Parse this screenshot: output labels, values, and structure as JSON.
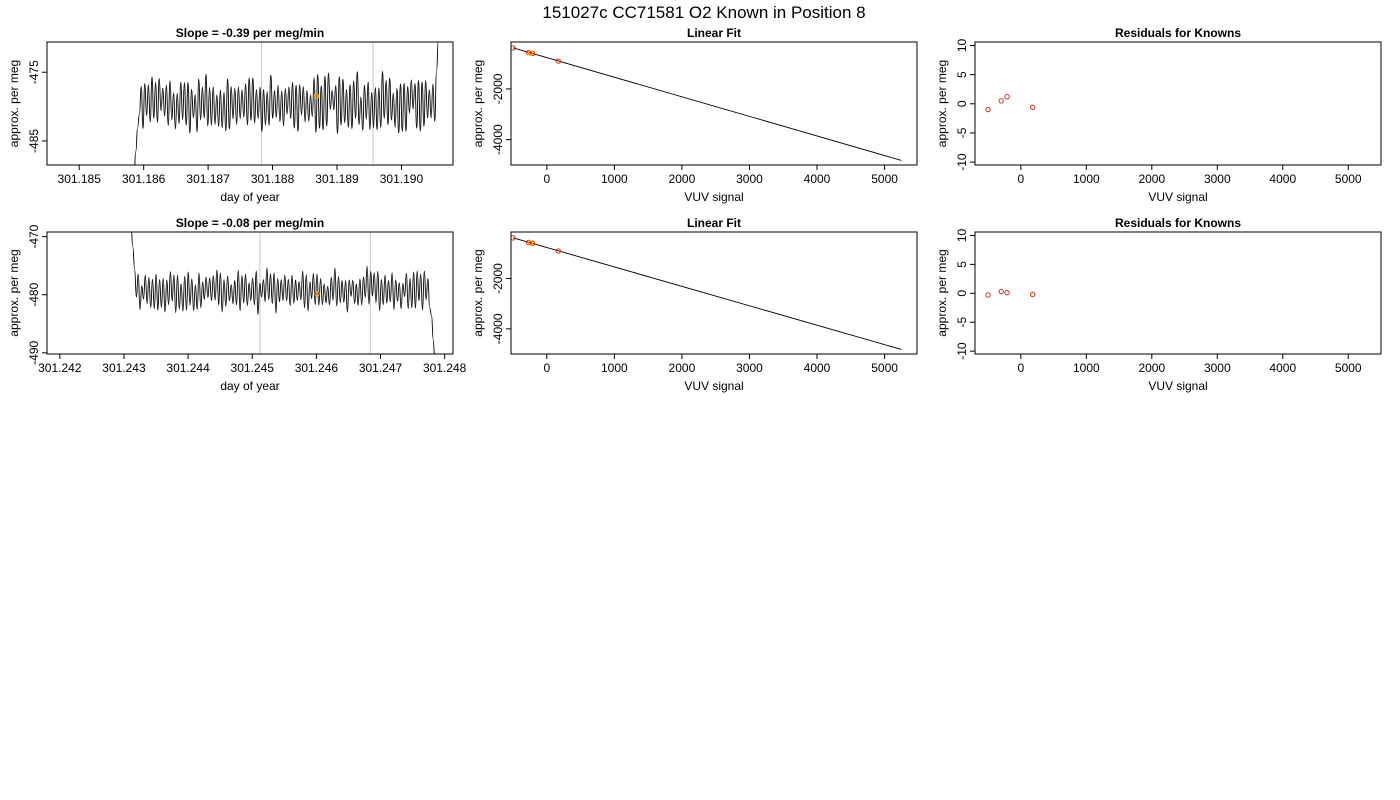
{
  "figure": {
    "title": "151027c     CC71581   O2 Known in Position  8"
  },
  "chart_data": [
    {
      "type": "line",
      "title": "Slope =  -0.39  per meg/min",
      "xlabel": "day of year",
      "ylabel": "approx. per meg",
      "xlim": [
        301.1845,
        301.1908
      ],
      "ylim": [
        -488.5,
        -470.6
      ],
      "xticks": [
        301.185,
        301.186,
        301.187,
        301.188,
        301.189,
        301.19
      ],
      "xtick_labels": [
        "301.185",
        "301.186",
        "301.187",
        "301.188",
        "301.189",
        "301.190"
      ],
      "yticks": [
        -485,
        -475
      ],
      "ytick_labels": [
        "-485",
        "-475"
      ],
      "vlines": [
        301.18783,
        301.18956
      ],
      "series": [
        {
          "x_start": 301.18585,
          "x_end": 301.1906,
          "start_value": -490,
          "end_value": -466,
          "base": -479.5,
          "amplitude": 4.2,
          "seed": 17
        }
      ],
      "highlight_points": [
        {
          "x": 301.18868,
          "y": -478.5
        }
      ],
      "colors": {
        "line": "#000000",
        "vline": "#c8c8c8",
        "highlight": "#ffa500"
      }
    },
    {
      "type": "scatter",
      "title": "Linear Fit",
      "xlabel": "VUV signal",
      "ylabel": "approx. per meg",
      "xlim": [
        -530,
        5480
      ],
      "ylim": [
        -5000,
        -150
      ],
      "xticks": [
        0,
        1000,
        2000,
        3000,
        4000,
        5000
      ],
      "xtick_labels": [
        "0",
        "1000",
        "2000",
        "3000",
        "4000",
        "5000"
      ],
      "yticks": [
        -4000,
        -2000
      ],
      "ytick_labels": [
        "-4000",
        "-2000"
      ],
      "fit_line": {
        "x": [
          -500,
          5250
        ],
        "y": [
          -380,
          -4820
        ]
      },
      "points": [
        {
          "x": -500,
          "y": -383
        },
        {
          "x": -270,
          "y": -563
        },
        {
          "x": -210,
          "y": -598
        },
        {
          "x": 170,
          "y": -905
        }
      ],
      "highlight_points": [
        {
          "x": -240,
          "y": -585
        }
      ],
      "colors": {
        "line": "#000000",
        "point": "#cc2200",
        "highlight": "#ffa500"
      }
    },
    {
      "type": "scatter",
      "title": "Residuals for Knowns",
      "xlabel": "VUV signal",
      "ylabel": "approx. per meg",
      "xlim": [
        -700,
        5500
      ],
      "ylim": [
        -10.5,
        10.6
      ],
      "xticks": [
        0,
        1000,
        2000,
        3000,
        4000,
        5000
      ],
      "xtick_labels": [
        "0",
        "1000",
        "2000",
        "3000",
        "4000",
        "5000"
      ],
      "yticks": [
        -10,
        -5,
        0,
        5,
        10
      ],
      "ytick_labels": [
        "-10",
        "-5",
        "0",
        "5",
        "10"
      ],
      "points": [
        {
          "x": -500,
          "y": -1.0
        },
        {
          "x": -300,
          "y": 0.5
        },
        {
          "x": -210,
          "y": 1.2
        },
        {
          "x": 180,
          "y": -0.6
        }
      ],
      "colors": {
        "point": "#cc2200"
      }
    },
    {
      "type": "line",
      "title": "Slope =  -0.08  per meg/min",
      "xlabel": "day of year",
      "ylabel": "approx. per meg",
      "xlim": [
        301.2418,
        301.24813
      ],
      "ylim": [
        -490.2,
        -469.2
      ],
      "xticks": [
        301.242,
        301.243,
        301.244,
        301.245,
        301.246,
        301.247,
        301.248
      ],
      "xtick_labels": [
        "301.242",
        "301.243",
        "301.244",
        "301.245",
        "301.246",
        "301.247",
        "301.248"
      ],
      "yticks": [
        -490,
        -480,
        -470
      ],
      "ytick_labels": [
        "-490",
        "-480",
        "-470"
      ],
      "vlines": [
        301.24512,
        301.24684
      ],
      "series": [
        {
          "x_start": 301.24311,
          "x_end": 301.24785,
          "start_value": -468,
          "end_value": -492,
          "base": -479.3,
          "amplitude": 3.6,
          "seed": 41
        }
      ],
      "highlight_points": [
        {
          "x": 301.24601,
          "y": -479.8
        }
      ],
      "colors": {
        "line": "#000000",
        "vline": "#c8c8c8",
        "highlight": "#ffa500"
      }
    },
    {
      "type": "scatter",
      "title": "Linear Fit",
      "xlabel": "VUV signal",
      "ylabel": "approx. per meg",
      "xlim": [
        -530,
        5480
      ],
      "ylim": [
        -5000,
        -150
      ],
      "xticks": [
        0,
        1000,
        2000,
        3000,
        4000,
        5000
      ],
      "xtick_labels": [
        "0",
        "1000",
        "2000",
        "3000",
        "4000",
        "5000"
      ],
      "yticks": [
        -4000,
        -2000
      ],
      "ytick_labels": [
        "-4000",
        "-2000"
      ],
      "fit_line": {
        "x": [
          -500,
          5250
        ],
        "y": [
          -380,
          -4820
        ]
      },
      "points": [
        {
          "x": -500,
          "y": -383
        },
        {
          "x": -270,
          "y": -563
        },
        {
          "x": -210,
          "y": -598
        },
        {
          "x": 170,
          "y": -905
        }
      ],
      "highlight_points": [
        {
          "x": -240,
          "y": -585
        }
      ],
      "colors": {
        "line": "#000000",
        "point": "#cc2200",
        "highlight": "#ffa500"
      }
    },
    {
      "type": "scatter",
      "title": "Residuals for Knowns",
      "xlabel": "VUV signal",
      "ylabel": "approx. per meg",
      "xlim": [
        -700,
        5500
      ],
      "ylim": [
        -10.5,
        10.6
      ],
      "xticks": [
        0,
        1000,
        2000,
        3000,
        4000,
        5000
      ],
      "xtick_labels": [
        "0",
        "1000",
        "2000",
        "3000",
        "4000",
        "5000"
      ],
      "yticks": [
        -10,
        -5,
        0,
        5,
        10
      ],
      "ytick_labels": [
        "-10",
        "-5",
        "0",
        "5",
        "10"
      ],
      "points": [
        {
          "x": -500,
          "y": -0.3
        },
        {
          "x": -300,
          "y": 0.3
        },
        {
          "x": -210,
          "y": 0.1
        },
        {
          "x": 180,
          "y": -0.2
        }
      ],
      "colors": {
        "point": "#cc2200"
      }
    }
  ]
}
